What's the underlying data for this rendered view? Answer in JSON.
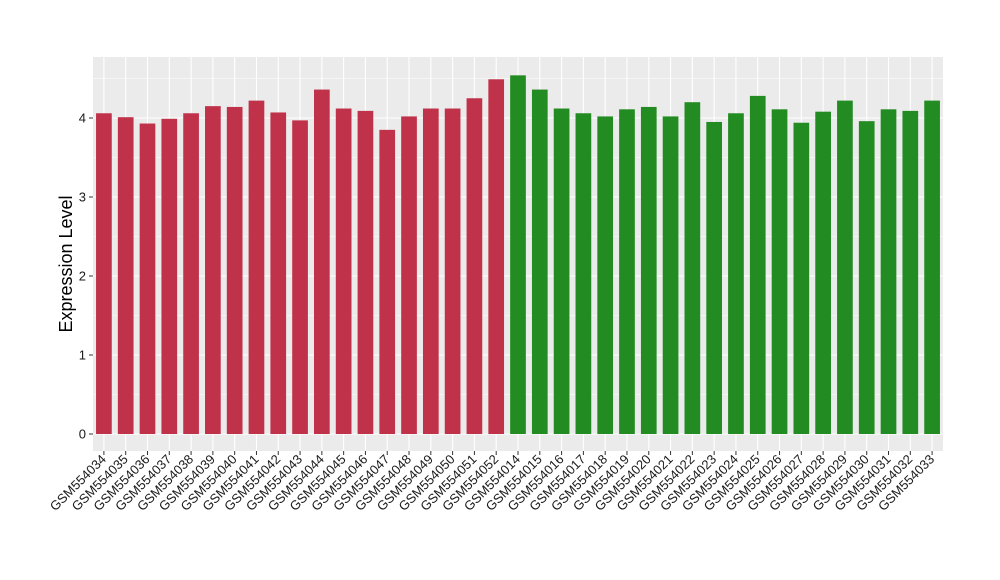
{
  "chart_data": {
    "type": "bar",
    "ylabel": "Expression Level",
    "xlabel": "",
    "ylim": [
      0,
      4.75
    ],
    "yticks": [
      0,
      1,
      2,
      3,
      4
    ],
    "grid": true,
    "background": "#ebebeb",
    "grid_color": "#ffffff",
    "categories": [
      "GSM554034",
      "GSM554035",
      "GSM554036",
      "GSM554037",
      "GSM554038",
      "GSM554039",
      "GSM554040",
      "GSM554041",
      "GSM554042",
      "GSM554043",
      "GSM554044",
      "GSM554045",
      "GSM554046",
      "GSM554047",
      "GSM554048",
      "GSM554049",
      "GSM554050",
      "GSM554051",
      "GSM554052",
      "GSM554014",
      "GSM554015",
      "GSM554016",
      "GSM554017",
      "GSM554018",
      "GSM554019",
      "GSM554020",
      "GSM554021",
      "GSM554022",
      "GSM554023",
      "GSM554024",
      "GSM554025",
      "GSM554026",
      "GSM554027",
      "GSM554028",
      "GSM554029",
      "GSM554030",
      "GSM554031",
      "GSM554032",
      "GSM554033"
    ],
    "values": [
      4.06,
      4.01,
      3.93,
      3.99,
      4.06,
      4.15,
      4.14,
      4.22,
      4.07,
      3.97,
      4.36,
      4.12,
      4.09,
      3.85,
      4.02,
      4.12,
      4.12,
      4.25,
      4.49,
      4.54,
      4.36,
      4.12,
      4.06,
      4.02,
      4.11,
      4.14,
      4.02,
      4.2,
      3.95,
      4.06,
      4.28,
      4.11,
      3.94,
      4.08,
      4.22,
      3.96,
      4.11,
      4.09,
      4.22
    ],
    "bar_colors": [
      "#c0314a",
      "#c0314a",
      "#c0314a",
      "#c0314a",
      "#c0314a",
      "#c0314a",
      "#c0314a",
      "#c0314a",
      "#c0314a",
      "#c0314a",
      "#c0314a",
      "#c0314a",
      "#c0314a",
      "#c0314a",
      "#c0314a",
      "#c0314a",
      "#c0314a",
      "#c0314a",
      "#c0314a",
      "#228b22",
      "#228b22",
      "#228b22",
      "#228b22",
      "#228b22",
      "#228b22",
      "#228b22",
      "#228b22",
      "#228b22",
      "#228b22",
      "#228b22",
      "#228b22",
      "#228b22",
      "#228b22",
      "#228b22",
      "#228b22",
      "#228b22",
      "#228b22",
      "#228b22",
      "#228b22"
    ]
  }
}
